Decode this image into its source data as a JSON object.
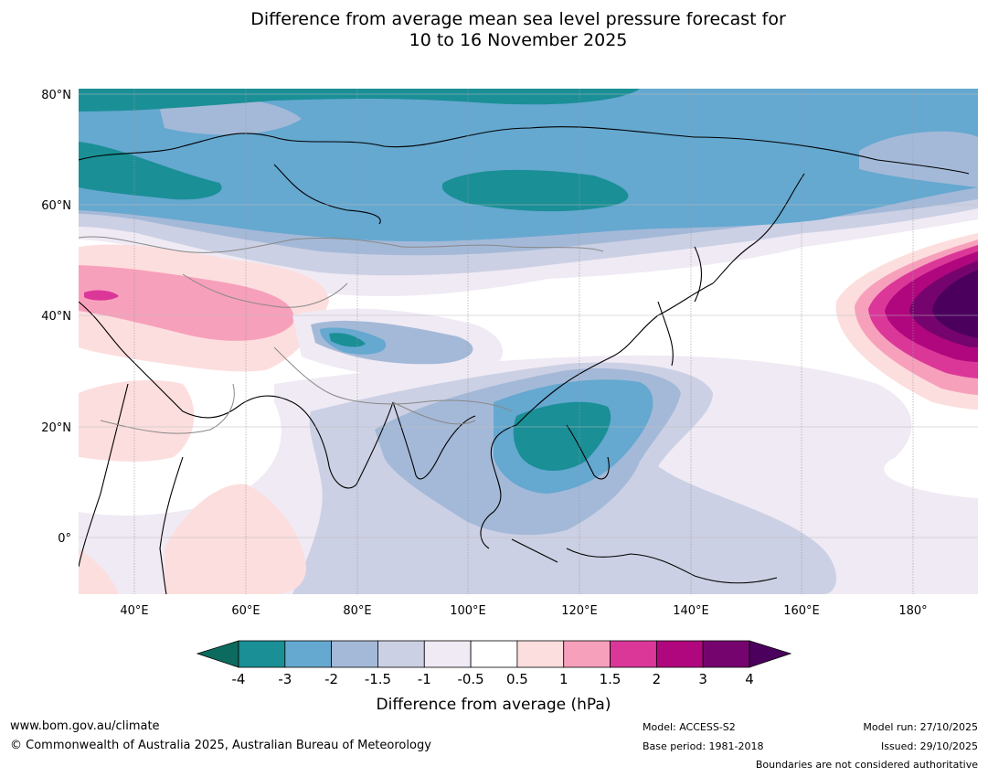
{
  "title": {
    "line1": "Difference from average mean sea level pressure forecast for",
    "line2": "10 to 16 November 2025"
  },
  "map": {
    "lat_labels": [
      "80°N",
      "60°N",
      "40°N",
      "20°N",
      "0°"
    ],
    "lon_labels": [
      "40°E",
      "60°E",
      "80°E",
      "100°E",
      "120°E",
      "140°E",
      "160°E",
      "180°"
    ],
    "extent": {
      "lon_min": 30,
      "lon_max": 191,
      "lat_min": -10,
      "lat_max": 81
    },
    "anomalies": [
      {
        "region": "Northern Europe and Siberia",
        "sign": "negative",
        "range_hPa": [
          -4,
          -1
        ]
      },
      {
        "region": "Central Asia / Caspian",
        "sign": "positive",
        "range_hPa": [
          0.5,
          2
        ]
      },
      {
        "region": "Tibetan Plateau",
        "sign": "negative",
        "range_hPa": [
          -4,
          -1
        ]
      },
      {
        "region": "South China Sea / Philippines",
        "sign": "negative",
        "range_hPa": [
          -3,
          -1
        ]
      },
      {
        "region": "North Pacific near dateline",
        "sign": "positive",
        "range_hPa": [
          1,
          4
        ]
      },
      {
        "region": "Western Indian Ocean / Africa",
        "sign": "positive",
        "range_hPa": [
          0.5,
          1
        ]
      }
    ]
  },
  "colorbar": {
    "label": "Difference from average (hPa)",
    "ticks": [
      "-4",
      "-3",
      "-2",
      "-1.5",
      "-1",
      "-0.5",
      "0.5",
      "1",
      "1.5",
      "2",
      "3",
      "4"
    ],
    "colors": [
      "#1a8f96",
      "#65a8d0",
      "#a4b9d8",
      "#ccd0e4",
      "#efeaf4",
      "#ffffff",
      "#fddede",
      "#f7a0bc",
      "#db3799",
      "#b0077e",
      "#76046e"
    ],
    "extend_low_color": "#0c6b5e",
    "extend_high_color": "#4b005e"
  },
  "footer": {
    "website": "www.bom.gov.au/climate",
    "copyright": "© Commonwealth of Australia 2025, Australian Bureau of Meteorology",
    "model": "Model: ACCESS-S2",
    "base_period": "Base period: 1981-2018",
    "model_run": "Model run: 27/10/2025",
    "issued": "Issued: 29/10/2025",
    "disclaimer": "Boundaries are not considered authoritative"
  }
}
